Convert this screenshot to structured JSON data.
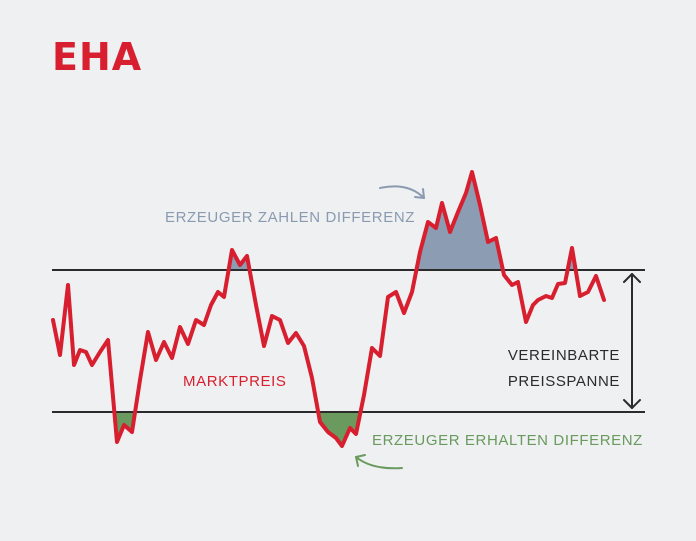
{
  "brand": {
    "logo_text": "EHA",
    "color": "#d81f2f"
  },
  "labels": {
    "producers_pay": "ERZEUGER ZAHLEN DIFFERENZ",
    "producers_receive": "ERZEUGER ERHALTEN DIFFERENZ",
    "market_price": "MARKTPREIS",
    "agreed_range_line1": "VEREINBARTE",
    "agreed_range_line2": "PREISSPANNE"
  },
  "colors": {
    "background": "#eef0f2",
    "price_line": "#d81f2f",
    "pay_area": "#8c9db3",
    "pay_text": "#8a9bb0",
    "receive_area": "#6a9a5e",
    "receive_text": "#6a9a5e",
    "band_lines": "#2b2b2b"
  }
}
